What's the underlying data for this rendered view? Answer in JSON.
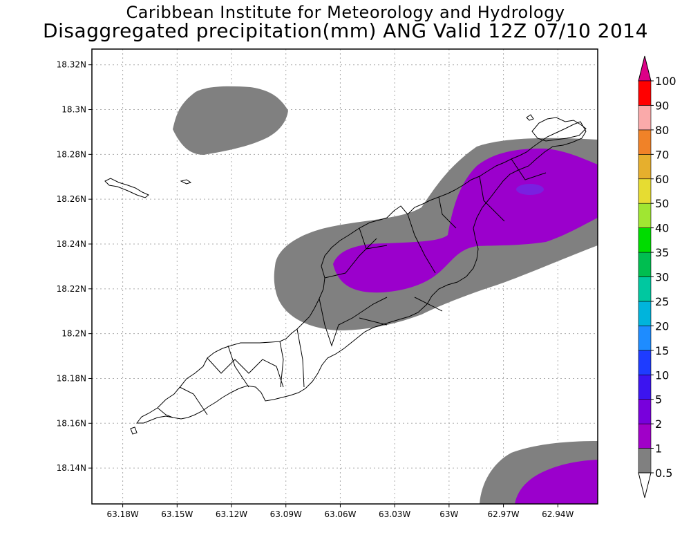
{
  "title_line1": "Caribbean Institute for Meteorology and Hydrology",
  "title_line2": "Disaggregated precipitation(mm) ANG Valid 12Z 07/10 2014",
  "map": {
    "lon_range": [
      -63.197,
      -62.918
    ],
    "lat_range": [
      18.124,
      18.327
    ],
    "lon_ticks": [
      {
        "value": -63.18,
        "label": "63.18W"
      },
      {
        "value": -63.15,
        "label": "63.15W"
      },
      {
        "value": -63.12,
        "label": "63.12W"
      },
      {
        "value": -63.09,
        "label": "63.09W"
      },
      {
        "value": -63.06,
        "label": "63.06W"
      },
      {
        "value": -63.03,
        "label": "63.03W"
      },
      {
        "value": -63.0,
        "label": "63W"
      },
      {
        "value": -62.97,
        "label": "62.97W"
      },
      {
        "value": -62.94,
        "label": "62.94W"
      }
    ],
    "lat_ticks": [
      {
        "value": 18.32,
        "label": "18.32N"
      },
      {
        "value": 18.3,
        "label": "18.3N"
      },
      {
        "value": 18.28,
        "label": "18.28N"
      },
      {
        "value": 18.26,
        "label": "18.26N"
      },
      {
        "value": 18.24,
        "label": "18.24N"
      },
      {
        "value": 18.22,
        "label": "18.22N"
      },
      {
        "value": 18.2,
        "label": "18.2N"
      },
      {
        "value": 18.18,
        "label": "18.18N"
      },
      {
        "value": 18.16,
        "label": "18.16N"
      },
      {
        "value": 18.14,
        "label": "18.14N"
      }
    ],
    "grid": true,
    "colors": {
      "band_0_5_to_1": "#808080",
      "band_1_to_2": "#9b00cc",
      "band_2_to_5": "#7a20e0"
    }
  },
  "colorbar": {
    "levels": [
      "0.5",
      "1",
      "2",
      "5",
      "10",
      "15",
      "20",
      "25",
      "30",
      "35",
      "40",
      "50",
      "60",
      "70",
      "80",
      "90",
      "100"
    ],
    "colors": [
      "#808080",
      "#a000c8",
      "#7800dc",
      "#3c14f0",
      "#1e3cff",
      "#1e8cff",
      "#00b4dc",
      "#00c8a0",
      "#00be50",
      "#00dc00",
      "#a0e632",
      "#e6dc32",
      "#e6af2d",
      "#f08228",
      "#faaaaa",
      "#ff0000",
      "#f03c3c"
    ],
    "top_arrow_color": "#dc0087",
    "bottom_arrow_color": "#ffffff"
  }
}
